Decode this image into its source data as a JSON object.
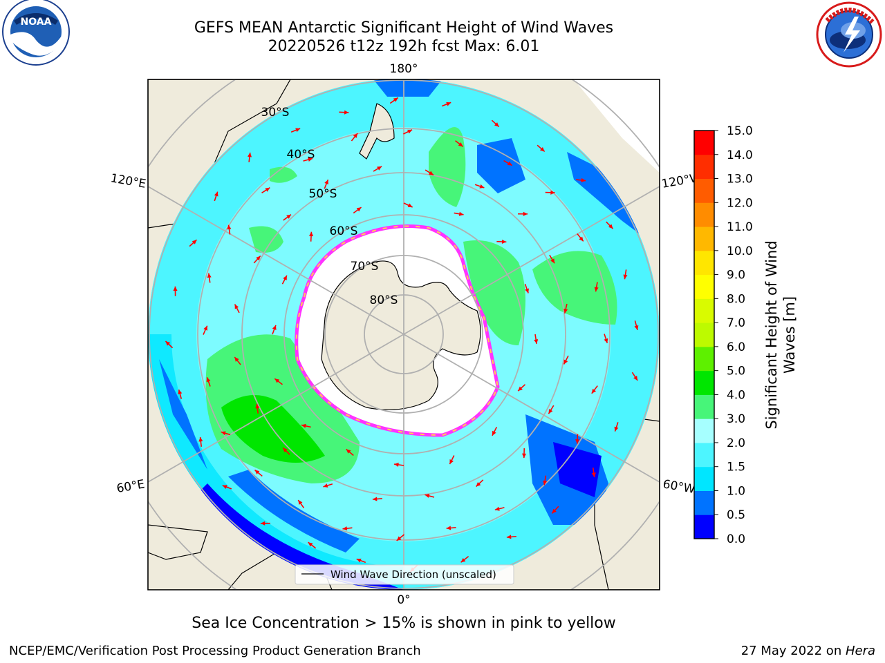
{
  "header": {
    "title_line1": "GEFS MEAN Antarctic Significant Height of Wind Waves",
    "title_line2": "20220526 t12z 192h fcst   Max: 6.01"
  },
  "logos": {
    "noaa": {
      "text": "NOAA",
      "ring_text": "NATIONAL OCEANIC AND ATMOSPHERIC ADMINISTRATION · U.S. DEPARTMENT OF COMMERCE"
    },
    "nws": {
      "ring_text": "NATIONAL WEATHER SERVICE"
    }
  },
  "map": {
    "projection": "south-polar-stereographic",
    "lon_labels": {
      "top": "180°",
      "bottom": "0°",
      "upper_left": "120°E",
      "upper_right": "120°W",
      "lower_left": "60°E",
      "lower_right": "60°W"
    },
    "lat_labels": [
      "30°S",
      "40°S",
      "50°S",
      "60°S",
      "70°S",
      "80°S"
    ],
    "legend": "Wind Wave Direction (unscaled)",
    "colors": {
      "land": "#efebdc",
      "ice_free_sea": "#ffffff",
      "arrow": "#ff0000",
      "grid": "#b0b0b0",
      "sea_ice_edge": [
        "#ff33ff",
        "#ffaa33",
        "#ffd24d"
      ]
    }
  },
  "colorbar": {
    "label": "Significant Height of Wind Waves [m]",
    "ticks": [
      "0.0",
      "0.5",
      "1.0",
      "1.5",
      "2.0",
      "3.0",
      "4.0",
      "5.0",
      "6.0",
      "7.0",
      "8.0",
      "9.0",
      "10.0",
      "11.0",
      "12.0",
      "13.0",
      "14.0",
      "15.0"
    ],
    "colors": [
      "#0000ff",
      "#0073ff",
      "#00e6ff",
      "#4df5ff",
      "#a6ffff",
      "#47f579",
      "#00e600",
      "#5ef000",
      "#bdfa00",
      "#d9fb00",
      "#ffff00",
      "#ffe600",
      "#ffb800",
      "#ff8c00",
      "#ff5c00",
      "#ff2e00",
      "#ff0000"
    ]
  },
  "caption": "Sea Ice Concentration > 15% is shown in pink to yellow",
  "footer": {
    "left": "NCEP/EMC/Verification Post Processing Product Generation Branch",
    "date": "27 May 2022 on ",
    "machine": "Hera"
  }
}
